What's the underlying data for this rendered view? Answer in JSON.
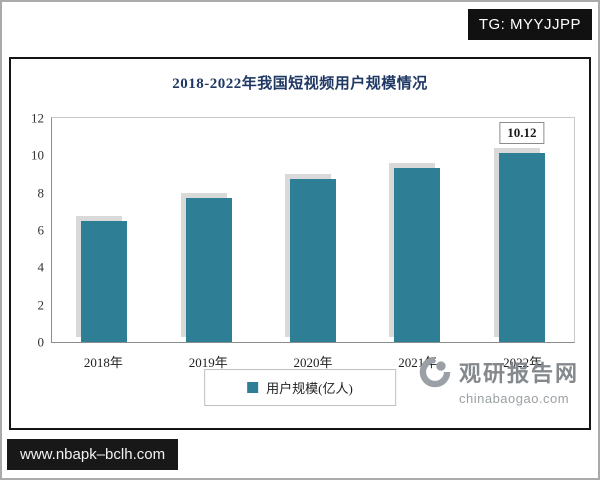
{
  "page": {
    "tg_badge": "TG: MYYJJPP",
    "site_badge": "www.nbapk–bclh.com"
  },
  "watermark": {
    "brand": "观研报告网",
    "domain": "chinabaogao.com"
  },
  "chart_data": {
    "type": "bar",
    "title": "2018-2022年我国短视频用户规模情况",
    "categories": [
      "2018年",
      "2019年",
      "2020年",
      "2021年",
      "2022年"
    ],
    "values": [
      6.48,
      7.73,
      8.73,
      9.34,
      10.12
    ],
    "annotations": [
      {
        "index": 4,
        "text": "10.12"
      }
    ],
    "ylim": [
      0,
      12
    ],
    "yticks": [
      0,
      2,
      4,
      6,
      8,
      10,
      12
    ],
    "xlabel": "",
    "ylabel": "",
    "grid": false,
    "legend": [
      "用户规模(亿人)"
    ],
    "legend_position": "bottom",
    "colors": {
      "bar": "#2e7f96",
      "bar_shadow": "#d9d9d9",
      "title": "#1f3864",
      "axis_text": "#333333"
    }
  }
}
